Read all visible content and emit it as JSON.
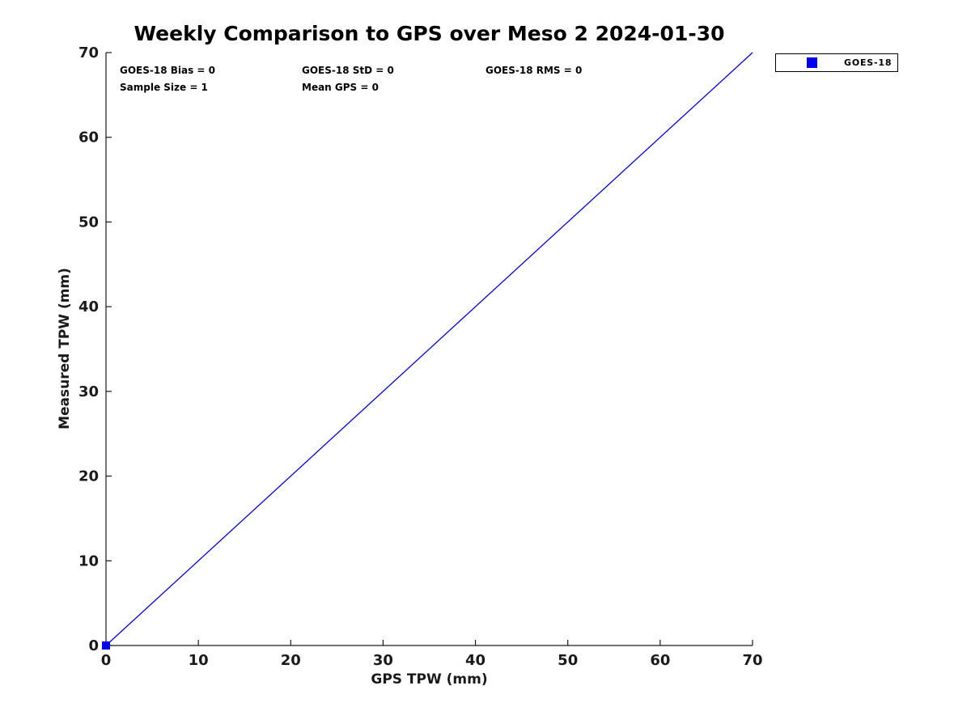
{
  "chart_data": {
    "type": "scatter",
    "title": "Weekly Comparison to GPS over Meso 2 2024-01-30",
    "xlabel": "GPS TPW (mm)",
    "ylabel": "Measured TPW (mm)",
    "xlim": [
      0,
      70
    ],
    "ylim": [
      0,
      70
    ],
    "xticks": [
      0,
      10,
      20,
      30,
      40,
      50,
      60,
      70
    ],
    "yticks": [
      0,
      10,
      20,
      30,
      40,
      50,
      60,
      70
    ],
    "grid": false,
    "colors": {
      "series_blue": "#0000ee",
      "axis": "#1a1a1a",
      "text": "#000000",
      "background": "#ffffff"
    },
    "legend": {
      "position": "outside-top-right",
      "entries": [
        {
          "label": "GOES-18",
          "marker": "square",
          "color": "#0000ee"
        }
      ]
    },
    "series": [
      {
        "name": "identity-line",
        "type": "line",
        "color": "#0000ee",
        "points": [
          {
            "x": 0,
            "y": 0
          },
          {
            "x": 70,
            "y": 70
          }
        ]
      },
      {
        "name": "GOES-18",
        "type": "scatter",
        "marker": "square",
        "marker_size": 10,
        "color": "#0000ee",
        "points": [
          {
            "x": 0,
            "y": 0
          }
        ]
      }
    ],
    "annotations": [
      {
        "text": "GOES-18 Bias = 0",
        "row": 0,
        "col": 0
      },
      {
        "text": "GOES-18 StD = 0",
        "row": 0,
        "col": 1
      },
      {
        "text": "GOES-18 RMS = 0",
        "row": 0,
        "col": 2
      },
      {
        "text": "Sample Size = 1",
        "row": 1,
        "col": 0
      },
      {
        "text": "Mean GPS = 0",
        "row": 1,
        "col": 1
      }
    ]
  }
}
